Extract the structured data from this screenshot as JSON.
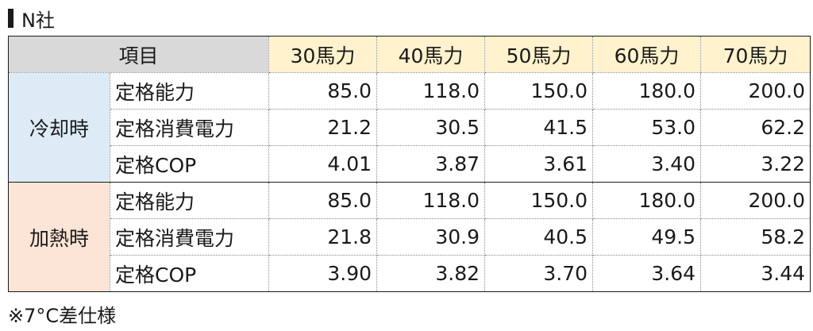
{
  "title": "N社",
  "chart_data": {
    "type": "table",
    "header_item": "項目",
    "columns": [
      "30馬力",
      "40馬力",
      "50馬力",
      "60馬力",
      "70馬力"
    ],
    "groups": [
      {
        "name": "冷却時",
        "color": "#ddebf7",
        "rows": [
          {
            "label": "定格能力",
            "values": [
              "85.0",
              "118.0",
              "150.0",
              "180.0",
              "200.0"
            ]
          },
          {
            "label": "定格消費電力",
            "values": [
              "21.2",
              "30.5",
              "41.5",
              "53.0",
              "62.2"
            ]
          },
          {
            "label": "定格COP",
            "values": [
              "4.01",
              "3.87",
              "3.61",
              "3.40",
              "3.22"
            ]
          }
        ]
      },
      {
        "name": "加熱時",
        "color": "#fce4d6",
        "rows": [
          {
            "label": "定格能力",
            "values": [
              "85.0",
              "118.0",
              "150.0",
              "180.0",
              "200.0"
            ]
          },
          {
            "label": "定格消費電力",
            "values": [
              "21.8",
              "30.9",
              "40.5",
              "49.5",
              "58.2"
            ]
          },
          {
            "label": "定格COP",
            "values": [
              "3.90",
              "3.82",
              "3.70",
              "3.64",
              "3.44"
            ]
          }
        ]
      }
    ]
  },
  "note": "※7°C差仕様",
  "colors": {
    "header_item": "#d9d9d9",
    "header_hp": "#fff2cc"
  }
}
